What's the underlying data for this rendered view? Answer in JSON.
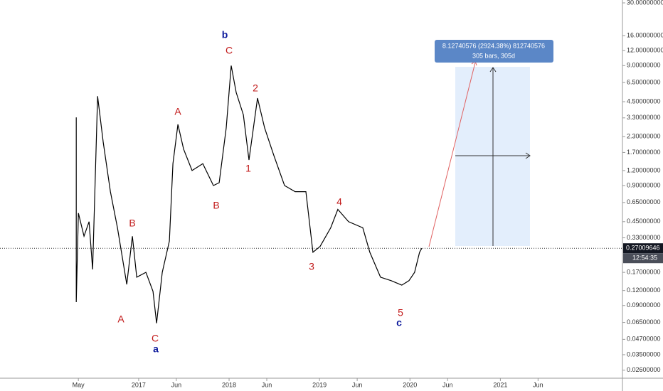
{
  "chart_data": {
    "type": "line",
    "color": "#000000",
    "log_scale": true,
    "x": [
      -0.28,
      -0.28,
      0,
      0.75,
      1.42,
      1.89,
      2.55,
      3.3,
      4.25,
      5.19,
      6.42,
      7.17,
      7.74,
      8.96,
      9.91,
      10.38,
      11.13,
      12.08,
      12.55,
      13.21,
      13.96,
      15.09,
      16.51,
      17.92,
      18.68,
      19.62,
      20.28,
      20.94,
      21.89,
      22.64,
      23.77,
      24.72,
      25.94,
      27.36,
      28.77,
      30.19,
      31.13,
      32.08,
      33.49,
      34.43,
      35.85,
      37.74,
      38.68,
      40.09,
      41.51,
      42.92,
      43.87,
      44.62,
      45.28,
      45.57
    ],
    "values": [
      3.33,
      0.096,
      0.53,
      0.34,
      0.45,
      0.18,
      5.0,
      2.07,
      0.8,
      0.4,
      0.135,
      0.34,
      0.155,
      0.17,
      0.118,
      0.064,
      0.17,
      0.31,
      1.37,
      2.91,
      1.81,
      1.2,
      1.37,
      0.9,
      0.95,
      2.72,
      9.0,
      5.38,
      3.5,
      1.47,
      4.82,
      2.72,
      1.6,
      0.9,
      0.8,
      0.8,
      0.25,
      0.28,
      0.4,
      0.57,
      0.45,
      0.4,
      0.25,
      0.155,
      0.145,
      0.133,
      0.145,
      0.17,
      0.25,
      0.27
    ],
    "xlim": [
      -10.4,
      72.2
    ],
    "xticks": [
      {
        "value": 0,
        "label": "May"
      },
      {
        "value": 8,
        "label": "2017"
      },
      {
        "value": 13,
        "label": "Jun"
      },
      {
        "value": 20,
        "label": "2018"
      },
      {
        "value": 25,
        "label": "Jun"
      },
      {
        "value": 32,
        "label": "2019"
      },
      {
        "value": 37,
        "label": "Jun"
      },
      {
        "value": 44,
        "label": "2020"
      },
      {
        "value": 49,
        "label": "Jun"
      },
      {
        "value": 56,
        "label": "2021"
      },
      {
        "value": 61,
        "label": "Jun"
      }
    ],
    "ylim": [
      0.0223,
      31.7
    ],
    "yticks": [
      {
        "value": 30,
        "label": "30.00000000"
      },
      {
        "value": 16,
        "label": "16.00000000"
      },
      {
        "value": 12,
        "label": "12.00000000"
      },
      {
        "value": 9,
        "label": "9.00000000"
      },
      {
        "value": 6.5,
        "label": "6.50000000"
      },
      {
        "value": 4.5,
        "label": "4.50000000"
      },
      {
        "value": 3.3,
        "label": "3.30000000"
      },
      {
        "value": 2.3,
        "label": "2.30000000"
      },
      {
        "value": 1.7,
        "label": "1.70000000"
      },
      {
        "value": 1.2,
        "label": "1.20000000"
      },
      {
        "value": 0.9,
        "label": "0.90000000"
      },
      {
        "value": 0.65,
        "label": "0.65000000"
      },
      {
        "value": 0.45,
        "label": "0.45000000"
      },
      {
        "value": 0.33,
        "label": "0.33000000"
      },
      {
        "value": 0.17,
        "label": "0.17000000"
      },
      {
        "value": 0.12,
        "label": "0.12000000"
      },
      {
        "value": 0.09,
        "label": "0.09000000"
      },
      {
        "value": 0.065,
        "label": "0.06500000"
      },
      {
        "value": 0.047,
        "label": "0.04700000"
      },
      {
        "value": 0.035,
        "label": "0.03500000"
      },
      {
        "value": 0.026,
        "label": "0.02600000"
      }
    ],
    "price_label": {
      "value": 0.27009646,
      "label": "0.27009646"
    },
    "countdown": "12:54:35",
    "measure": {
      "line1": "8.12740576 (2924.38%) 812740576",
      "line2": "305 bars, 305d"
    },
    "annotations": [
      {
        "text": "b",
        "color": "#0d1a9c"
      },
      {
        "text": "C",
        "color": "#c21a1a"
      },
      {
        "text": "2",
        "color": "#c21a1a"
      },
      {
        "text": "A",
        "color": "#c21a1a"
      },
      {
        "text": "1",
        "color": "#c21a1a"
      },
      {
        "text": "B",
        "color": "#c21a1a"
      },
      {
        "text": "B",
        "color": "#c21a1a"
      },
      {
        "text": "4",
        "color": "#c21a1a"
      },
      {
        "text": "3",
        "color": "#c21a1a"
      },
      {
        "text": "A",
        "color": "#c21a1a"
      },
      {
        "text": "C",
        "color": "#c21a1a"
      },
      {
        "text": "a",
        "color": "#0d1a9c"
      },
      {
        "text": "5",
        "color": "#c21a1a"
      },
      {
        "text": "c",
        "color": "#0d1a9c"
      }
    ]
  }
}
